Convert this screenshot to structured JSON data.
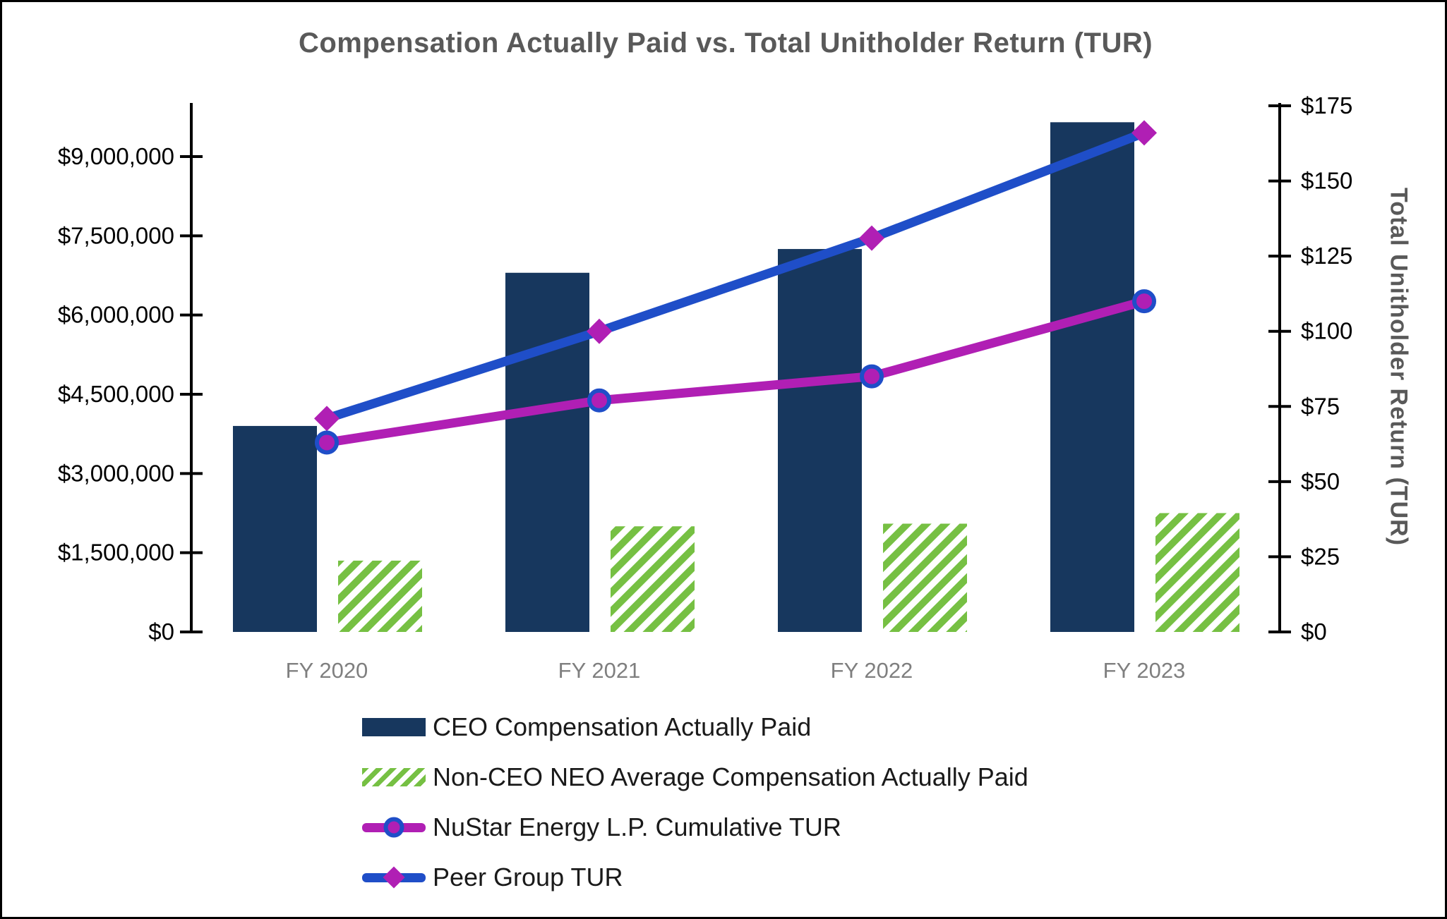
{
  "window": {
    "background": "#ffffff",
    "border_color": "#000000"
  },
  "colors": {
    "navy": "#17375E",
    "green": "#76C043",
    "magenta": "#B01FB4",
    "blue": "#1F4EC8",
    "title_gray": "#595959",
    "category_label_gray": "#7F7F7F",
    "tick_label_black": "#000000"
  },
  "chart_data": {
    "type": "combo",
    "title": "Compensation Actually Paid vs. Total Unitholder Return (TUR)",
    "categories": [
      "FY 2020",
      "FY 2021",
      "FY 2022",
      "FY 2023"
    ],
    "series": [
      {
        "name": "CEO Compensation Actually Paid",
        "kind": "bar",
        "axis": "left",
        "style": "solid",
        "color": "#17375E",
        "values": [
          3900000,
          6800000,
          7250000,
          9650000
        ]
      },
      {
        "name": "Non-CEO NEO Average Compensation Actually Paid",
        "kind": "bar",
        "axis": "left",
        "style": "diagonal-hatch",
        "color": "#76C043",
        "values": [
          1350000,
          2000000,
          2050000,
          2250000
        ]
      },
      {
        "name": "NuStar Energy L.P. Cumulative TUR",
        "kind": "line",
        "axis": "right",
        "marker": "circle",
        "color": "#B01FB4",
        "marker_fill": "#B01FB4",
        "marker_stroke": "#1F4EC8",
        "values": [
          63,
          77,
          85,
          110
        ]
      },
      {
        "name": "Peer Group TUR",
        "kind": "line",
        "axis": "right",
        "marker": "diamond",
        "color": "#1F4EC8",
        "marker_fill": "#B01FB4",
        "values": [
          71,
          100,
          131,
          166
        ]
      }
    ],
    "left_axis": {
      "min": 0,
      "max": 9000000,
      "tick_step": 1500000,
      "tick_labels": [
        "$0",
        "$1,500,000",
        "$3,000,000",
        "$4,500,000",
        "$6,000,000",
        "$7,500,000",
        "$9,000,000"
      ]
    },
    "right_axis": {
      "min": 0,
      "max": 175,
      "tick_step": 25,
      "tick_labels": [
        "$0",
        "$25",
        "$50",
        "$75",
        "$100",
        "$125",
        "$150",
        "$175"
      ],
      "title": "Total Unitholder Return (TUR)"
    },
    "grid": false,
    "legend_position": "bottom-left"
  }
}
